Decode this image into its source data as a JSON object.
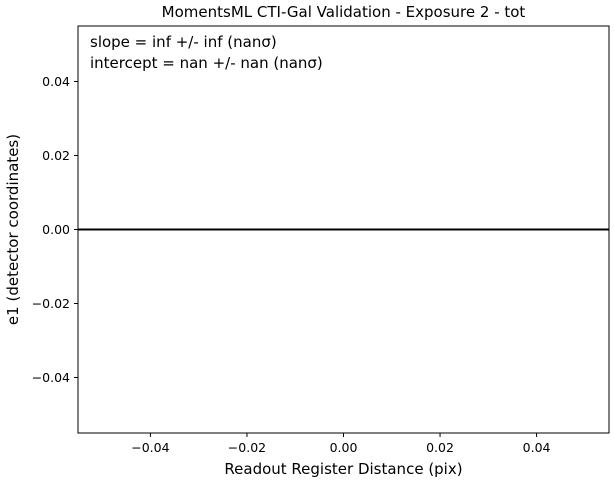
{
  "chart_data": {
    "type": "line",
    "title": "MomentsML CTI-Gal Validation - Exposure 2 - tot",
    "xlabel": "Readout Register Distance (pix)",
    "ylabel": "e1 (detector coordinates)",
    "xlim": [
      -0.055,
      0.055
    ],
    "ylim": [
      -0.055,
      0.055
    ],
    "xticks": [
      -0.04,
      -0.02,
      0.0,
      0.02,
      0.04
    ],
    "xtick_labels": [
      "−0.04",
      "−0.02",
      "0.00",
      "0.02",
      "0.04"
    ],
    "yticks": [
      0.04,
      0.02,
      0.0,
      -0.02,
      -0.04
    ],
    "ytick_labels": [
      "0.04",
      "0.02",
      "0.00",
      "−0.02",
      "−0.04"
    ],
    "grid": false,
    "annotations": [
      "slope = inf +/- inf (nanσ)",
      "intercept = nan +/- nan (nanσ)"
    ],
    "reference_line": {
      "y": 0.0,
      "color": "#000000"
    },
    "series": []
  }
}
